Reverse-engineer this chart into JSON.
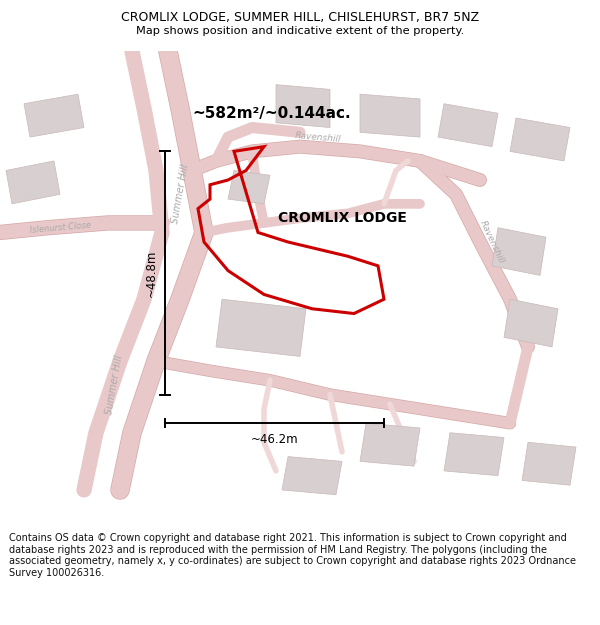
{
  "title_line1": "CROMLIX LODGE, SUMMER HILL, CHISLEHURST, BR7 5NZ",
  "title_line2": "Map shows position and indicative extent of the property.",
  "property_label": "CROMLIX LODGE",
  "area_label": "~582m²/~0.144ac.",
  "dim_width": "~46.2m",
  "dim_height": "~48.8m",
  "footer_text": "Contains OS data © Crown copyright and database right 2021. This information is subject to Crown copyright and database rights 2023 and is reproduced with the permission of HM Land Registry. The polygons (including the associated geometry, namely x, y co-ordinates) are subject to Crown copyright and database rights 2023 Ordnance Survey 100026316.",
  "map_bg": "#f7f0f0",
  "road_color": "#e8c8c8",
  "road_outline_color": "#d4a8a8",
  "building_color": "#d8d0d0",
  "building_edge_color": "#c8b8b8",
  "property_outline_color": "#cc0000",
  "title_color": "#000000",
  "road_label_color": "#aaaaaa",
  "footer_bg": "#ffffff",
  "divider_color": "#cccccc",
  "figsize": [
    6.0,
    6.25
  ],
  "dpi": 100
}
